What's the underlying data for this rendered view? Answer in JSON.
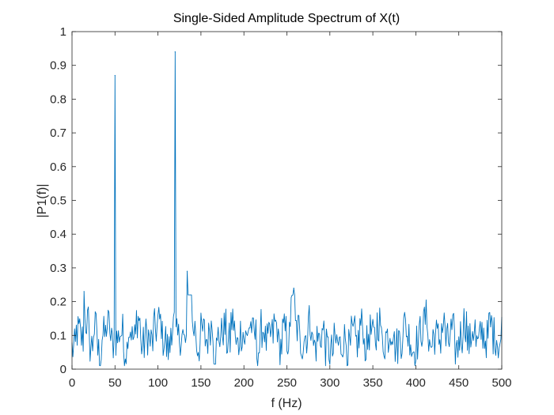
{
  "chart_data": {
    "type": "line",
    "title": "Single-Sided Amplitude Spectrum of X(t)",
    "xlabel": "f (Hz)",
    "ylabel": "|P1(f)|",
    "xlim": [
      0,
      500
    ],
    "ylim": [
      0,
      1
    ],
    "xticks": [
      0,
      50,
      100,
      150,
      200,
      250,
      300,
      350,
      400,
      450,
      500
    ],
    "yticks": [
      0,
      0.1,
      0.2,
      0.3,
      0.4,
      0.5,
      0.6,
      0.7,
      0.8,
      0.9,
      1
    ],
    "xtick_labels": [
      "0",
      "50",
      "100",
      "150",
      "200",
      "250",
      "300",
      "350",
      "400",
      "450",
      "500"
    ],
    "ytick_labels": [
      "0",
      "0.1",
      "0.2",
      "0.3",
      "0.4",
      "0.5",
      "0.6",
      "0.7",
      "0.8",
      "0.9",
      "1"
    ],
    "grid": false,
    "series": [
      {
        "name": "P1",
        "color": "#0072BD",
        "x_start": 0,
        "x_step": 5,
        "noise_floor": {
          "mean": 0.09,
          "min": 0.01,
          "max": 0.24,
          "x_start": 0,
          "x_end": 500,
          "x_step": 1
        },
        "peaks": [
          {
            "x": 50,
            "y": 0.87
          },
          {
            "x": 120,
            "y": 0.94
          },
          {
            "x": 134,
            "y": 0.29
          },
          {
            "x": 258,
            "y": 0.24
          },
          {
            "x": 14,
            "y": 0.23
          }
        ],
        "values": [
          0.06,
          0.11,
          0.09,
          0.14,
          0.07,
          0.12,
          0.05,
          0.1,
          0.13,
          0.08,
          0.87,
          0.11,
          0.06,
          0.12,
          0.09,
          0.15,
          0.07,
          0.1,
          0.08,
          0.12,
          0.14,
          0.09,
          0.06,
          0.13,
          0.94,
          0.1,
          0.08,
          0.29,
          0.12,
          0.07,
          0.11,
          0.09,
          0.13,
          0.06,
          0.1,
          0.12,
          0.08,
          0.14,
          0.07,
          0.11,
          0.09,
          0.13,
          0.1,
          0.06,
          0.12,
          0.08,
          0.1,
          0.13,
          0.07,
          0.11,
          0.09,
          0.24,
          0.12,
          0.08,
          0.1,
          0.14,
          0.07,
          0.09,
          0.11,
          0.06,
          0.05,
          0.08,
          0.07,
          0.09,
          0.06,
          0.1,
          0.08,
          0.13,
          0.07,
          0.11,
          0.09,
          0.14,
          0.08,
          0.1,
          0.12,
          0.07,
          0.09,
          0.13,
          0.1,
          0.06,
          0.08,
          0.12,
          0.15,
          0.07,
          0.1,
          0.09,
          0.13,
          0.08,
          0.11,
          0.06,
          0.1,
          0.14,
          0.08,
          0.12,
          0.07,
          0.11,
          0.09,
          0.13,
          0.1,
          0.08,
          0.12
        ]
      }
    ]
  }
}
